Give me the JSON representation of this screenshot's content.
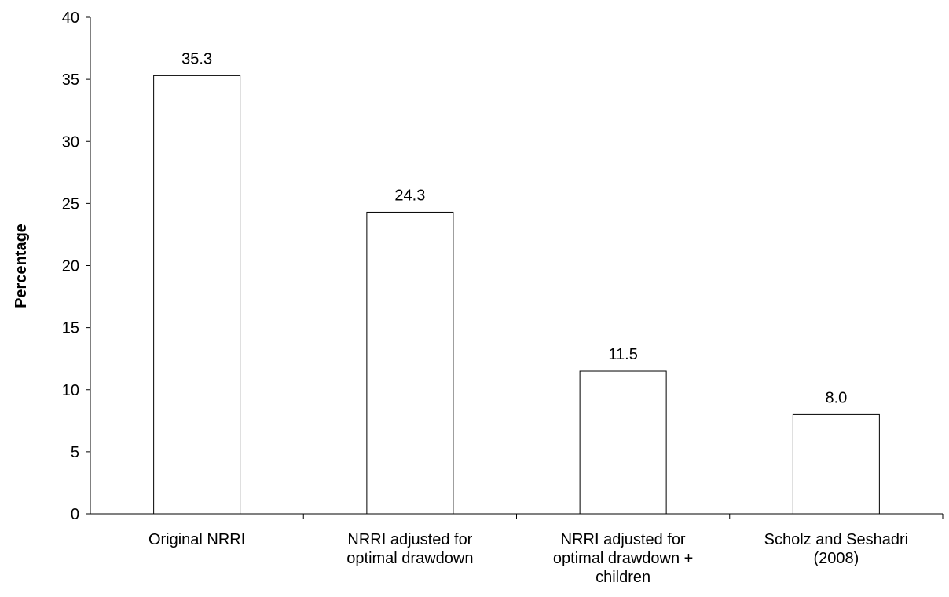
{
  "chart_data": {
    "type": "bar",
    "title": "",
    "xlabel": "",
    "ylabel": "Percentage",
    "ylim": [
      0,
      40
    ],
    "yticks": [
      0,
      5,
      10,
      15,
      20,
      25,
      30,
      35,
      40
    ],
    "grid": false,
    "legend": "none",
    "categories": [
      [
        "Original NRRI"
      ],
      [
        "NRRI adjusted for",
        "optimal drawdown"
      ],
      [
        "NRRI adjusted for",
        "optimal drawdown +",
        "children"
      ],
      [
        "Scholz and Seshadri",
        "(2008)"
      ]
    ],
    "values": [
      35.3,
      24.3,
      11.5,
      8.0
    ],
    "data_labels": [
      "35.3",
      "24.3",
      "11.5",
      "8.0"
    ],
    "colors": {
      "bar_fill": "#ffffff",
      "bar_stroke": "#000000",
      "axis": "#000000"
    }
  }
}
